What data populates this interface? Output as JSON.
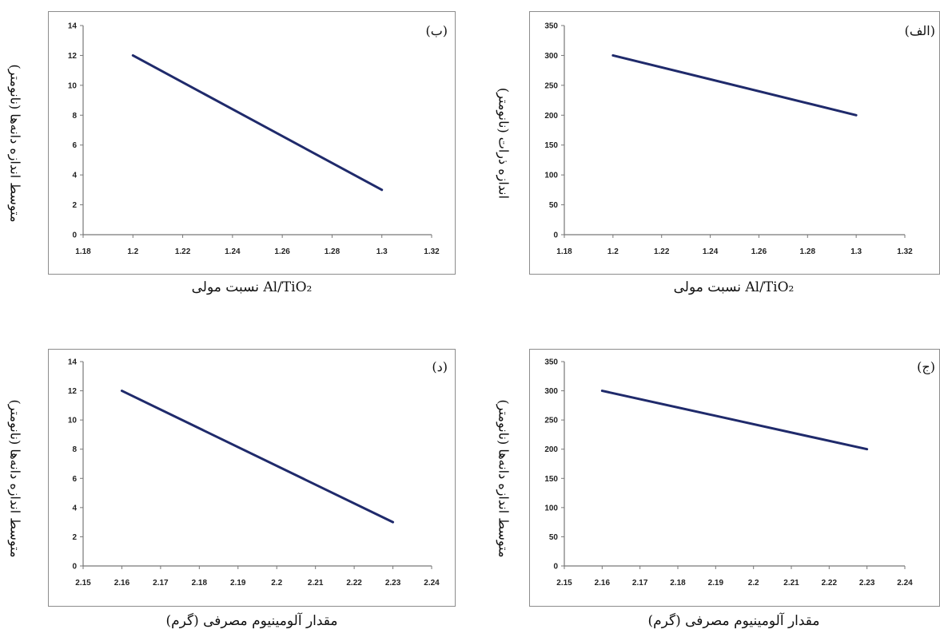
{
  "chart_data": [
    {
      "id": "b",
      "type": "line",
      "panel_label": "(ب)",
      "ylabel": "متوسط اندازه دانه‌ها (نانومتر)",
      "xlabel": "نسبت مولی Al/TiO₂",
      "x_ticks": [
        "1.18",
        "1.2",
        "1.22",
        "1.24",
        "1.26",
        "1.28",
        "1.3",
        "1.32"
      ],
      "y_ticks": [
        "0",
        "2",
        "4",
        "6",
        "8",
        "10",
        "12",
        "14"
      ],
      "xlim": [
        1.18,
        1.32
      ],
      "ylim": [
        0,
        14
      ],
      "series": [
        {
          "x": [
            1.2,
            1.3
          ],
          "y": [
            12,
            3
          ]
        }
      ],
      "line_color": "#1f2a6b"
    },
    {
      "id": "a",
      "type": "line",
      "panel_label": "(الف)",
      "ylabel": "اندازه ذرات (نانومتر)",
      "xlabel": "نسبت مولی Al/TiO₂",
      "x_ticks": [
        "1.18",
        "1.2",
        "1.22",
        "1.24",
        "1.26",
        "1.28",
        "1.3",
        "1.32"
      ],
      "y_ticks": [
        "0",
        "50",
        "100",
        "150",
        "200",
        "250",
        "300",
        "350"
      ],
      "xlim": [
        1.18,
        1.32
      ],
      "ylim": [
        0,
        350
      ],
      "series": [
        {
          "x": [
            1.2,
            1.3
          ],
          "y": [
            300,
            200
          ]
        }
      ],
      "line_color": "#1f2a6b"
    },
    {
      "id": "d",
      "type": "line",
      "panel_label": "(د)",
      "ylabel": "متوسط اندازه دانه‌ها (نانومتر)",
      "xlabel": "مقدار آلومینیوم مصرفی (گرم)",
      "x_ticks": [
        "2.15",
        "2.16",
        "2.17",
        "2.18",
        "2.19",
        "2.2",
        "2.21",
        "2.22",
        "2.23",
        "2.24"
      ],
      "y_ticks": [
        "0",
        "2",
        "4",
        "6",
        "8",
        "10",
        "12",
        "14"
      ],
      "xlim": [
        2.15,
        2.24
      ],
      "ylim": [
        0,
        14
      ],
      "series": [
        {
          "x": [
            2.16,
            2.23
          ],
          "y": [
            12,
            3
          ]
        }
      ],
      "line_color": "#1f2a6b"
    },
    {
      "id": "c",
      "type": "line",
      "panel_label": "(ج)",
      "ylabel": "متوسط اندازه دانه‌ها (نانومتر)",
      "xlabel": "مقدار آلومینیوم مصرفی (گرم)",
      "x_ticks": [
        "2.15",
        "2.16",
        "2.17",
        "2.18",
        "2.19",
        "2.2",
        "2.21",
        "2.22",
        "2.23",
        "2.24"
      ],
      "y_ticks": [
        "0",
        "50",
        "100",
        "150",
        "200",
        "250",
        "300",
        "350"
      ],
      "xlim": [
        2.15,
        2.24
      ],
      "ylim": [
        0,
        350
      ],
      "series": [
        {
          "x": [
            2.16,
            2.23
          ],
          "y": [
            300,
            200
          ]
        }
      ],
      "line_color": "#1f2a6b"
    }
  ]
}
